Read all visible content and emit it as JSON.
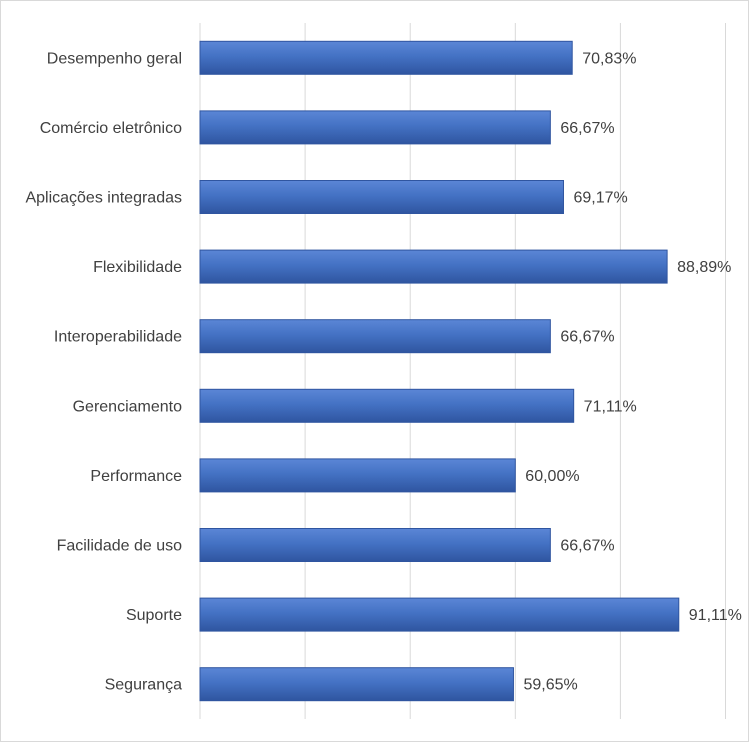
{
  "chart_data": {
    "type": "bar",
    "orientation": "horizontal",
    "categories": [
      "Desempenho geral",
      "Comércio eletrônico",
      "Aplicações integradas",
      "Flexibilidade",
      "Interoperabilidade",
      "Gerenciamento",
      "Performance",
      "Facilidade de uso",
      "Suporte",
      "Segurança"
    ],
    "values": [
      70.83,
      66.67,
      69.17,
      88.89,
      66.67,
      71.11,
      60.0,
      66.67,
      91.11,
      59.65
    ],
    "value_labels": [
      "70,83%",
      "66,67%",
      "69,17%",
      "88,89%",
      "66,67%",
      "71,11%",
      "60,00%",
      "66,67%",
      "91,11%",
      "59,65%"
    ],
    "xlim": [
      0,
      100
    ],
    "grid": true,
    "legend": "none",
    "title": "",
    "xlabel": "",
    "ylabel": "",
    "colors": {
      "bar": "#4472C4",
      "bar_dark": "#2F55A0",
      "grid": "#d9d9d9",
      "text": "#404040"
    }
  }
}
